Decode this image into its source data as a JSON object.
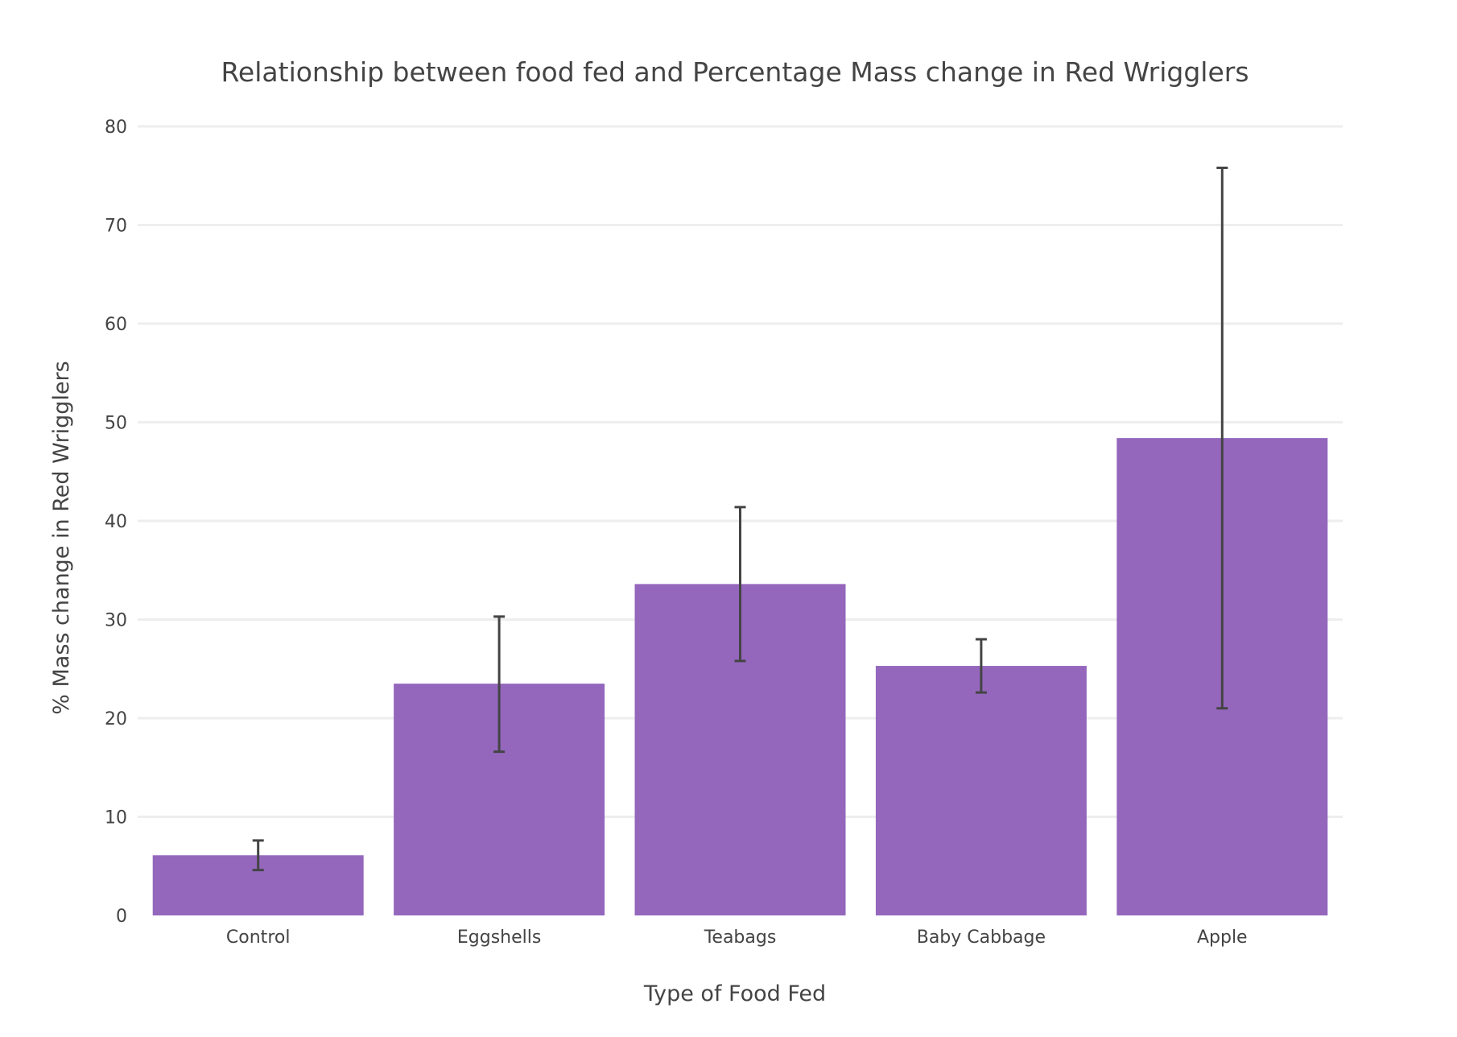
{
  "chart_data": {
    "type": "bar",
    "title": "Relationship between food fed and Percentage Mass change in Red Wrigglers",
    "xlabel": "Type of Food Fed",
    "ylabel": "% Mass change in Red Wrigglers",
    "categories": [
      "Control",
      "Eggshells",
      "Teabags",
      "Baby Cabbage",
      "Apple"
    ],
    "values": [
      6.1,
      23.5,
      33.6,
      25.3,
      48.4
    ],
    "error_low": [
      4.6,
      16.6,
      25.8,
      22.6,
      21.0
    ],
    "error_high": [
      7.6,
      30.3,
      41.4,
      28.0,
      75.8
    ],
    "ylim": [
      0,
      80
    ],
    "yticks": [
      0,
      10,
      20,
      30,
      40,
      50,
      60,
      70,
      80
    ],
    "grid": true,
    "legend": false,
    "colors": {
      "bar": "#9467bd",
      "error_bar": "#444444",
      "grid": "#eeeeee",
      "text": "#444444"
    }
  }
}
